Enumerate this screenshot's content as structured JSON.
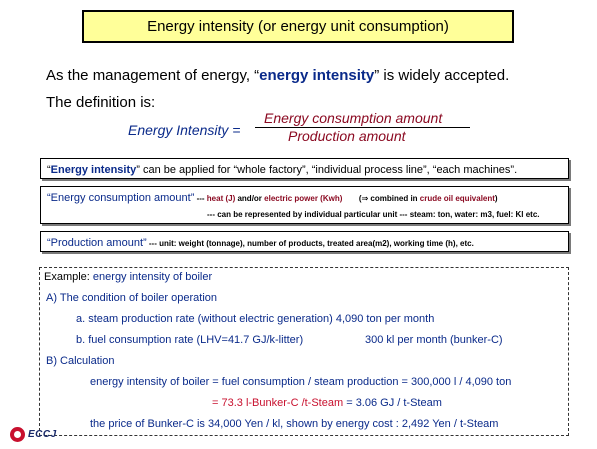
{
  "title": "Energy intensity (or energy unit consumption)",
  "intro": {
    "line1_pre": "As the management of energy, “",
    "line1_term": "energy intensity",
    "line1_post": "” is widely accepted.",
    "line2": "The definition is:"
  },
  "formula": {
    "lhs": "Energy Intensity =",
    "numerator": "Energy consumption amount",
    "denominator": "Production amount"
  },
  "note1": {
    "q_open": "“",
    "term": "Energy intensity",
    "rest": "” can be applied for “whole factory”, “individual process line”, “each machines”."
  },
  "note2": {
    "term": "“Energy consumption amount”",
    "dash": " --- ",
    "heat": "heat (J)",
    "andor": " and/or ",
    "power": "electric power (Kwh)",
    "combined_pre": "(⇒ combined in ",
    "crude": "crude oil equivalent",
    "combined_post": ")",
    "line2": "--- can be represented  by individual particular  unit  --- steam: ton, water: m3, fuel: Kl etc."
  },
  "note3": {
    "term": "“Production amount”",
    "rest": " --- unit: weight (tonnage), number of products, treated area(m2), working time (h), etc."
  },
  "example": {
    "heading_label": "Example: ",
    "heading_rest": "energy intensity of boiler",
    "sectionA": "A) The condition of boiler operation",
    "a_item": "a. steam production rate (without electric generation) 4,090 ton per month",
    "b_item": "b. fuel consumption rate (LHV=41.7 GJ/k-litter)",
    "b_value": "300 kl per month   (bunker-C)",
    "sectionB": "B) Calculation",
    "calc1": "energy intensity of boiler = fuel consumption / steam production = 300,000 l / 4,090 ton",
    "calc2_eq": "= ",
    "calc2_a": "73.3 l-Bunker-C /t-Steam",
    "calc2_mid": " = ",
    "calc2_b": "3.06 GJ / t-Steam",
    "price": "the price of Bunker-C is 34,000 Yen / kl,    shown by energy cost : 2,492 Yen / t-Steam"
  },
  "logo": {
    "text": "ECCJ",
    "brand_color": "#c8102e"
  },
  "colors": {
    "title_bg": "#ffff99",
    "navy": "#0a2a8a",
    "maroon": "#8b0a22",
    "red": "#c8102e"
  }
}
